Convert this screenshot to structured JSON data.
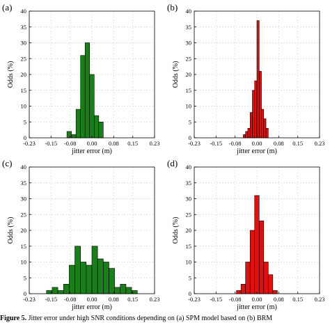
{
  "chart_data": [
    {
      "type": "bar",
      "panel_label": "(a)",
      "ylabel": "Odds (%)",
      "xlabel": "jitter error (m)",
      "xlim": [
        -0.23,
        0.23
      ],
      "ylim": [
        0,
        40
      ],
      "xticks": [
        "-0.23",
        "-0.15",
        "-0.08",
        "0.00",
        "0.08",
        "0.15",
        "0.23"
      ],
      "yticks": [
        "0",
        "5",
        "10",
        "15",
        "20",
        "25",
        "30",
        "35",
        "40"
      ],
      "bin_width": 0.0167,
      "bin_centers": [
        -0.0833,
        -0.0667,
        -0.05,
        -0.0333,
        -0.0167,
        0.0,
        0.0167,
        0.0333,
        0.05
      ],
      "values": [
        2,
        1,
        9,
        26,
        30,
        20,
        7,
        5,
        0
      ],
      "color": "#1a7f1a"
    },
    {
      "type": "bar",
      "panel_label": "(b)",
      "ylabel": "Odds (%)",
      "xlabel": "jitter error (m)",
      "xlim": [
        -0.23,
        0.23
      ],
      "ylim": [
        0,
        40
      ],
      "xticks": [
        "-0.23",
        "-0.15",
        "-0.08",
        "0.00",
        "0.08",
        "0.15",
        "0.23"
      ],
      "yticks": [
        "0",
        "5",
        "10",
        "15",
        "20",
        "25",
        "30",
        "35",
        "40"
      ],
      "bin_width": 0.0083,
      "bin_centers": [
        -0.0458,
        -0.0375,
        -0.0292,
        -0.0208,
        -0.0125,
        -0.0042,
        0.0042,
        0.0125,
        0.0208,
        0.0292,
        0.0375,
        0.0458
      ],
      "values": [
        1,
        2,
        3,
        8,
        15,
        18,
        37,
        21,
        9,
        6,
        3,
        0
      ],
      "color": "#e01010"
    },
    {
      "type": "bar",
      "panel_label": "(c)",
      "ylabel": "Odds (%)",
      "xlabel": "jitter error (m)",
      "xlim": [
        -0.23,
        0.23
      ],
      "ylim": [
        0,
        40
      ],
      "xticks": [
        "-0.23",
        "-0.15",
        "-0.08",
        "0.00",
        "0.08",
        "0.15",
        "0.23"
      ],
      "yticks": [
        "0",
        "5",
        "10",
        "15",
        "20",
        "25",
        "30",
        "35",
        "40"
      ],
      "bin_width": 0.0208,
      "bin_centers": [
        -0.1563,
        -0.1354,
        -0.1146,
        -0.0938,
        -0.0729,
        -0.0521,
        -0.0313,
        -0.0104,
        0.0104,
        0.0313,
        0.0521,
        0.0729,
        0.0938,
        0.1146,
        0.1354,
        0.1563
      ],
      "values": [
        1,
        2,
        1,
        3,
        9,
        15,
        10,
        9,
        15,
        11,
        10,
        8,
        2,
        3,
        2,
        1
      ],
      "color": "#1a7f1a"
    },
    {
      "type": "bar",
      "panel_label": "(d)",
      "ylabel": "Odds (%)",
      "xlabel": "jitter error (m)",
      "xlim": [
        -0.23,
        0.23
      ],
      "ylim": [
        0,
        40
      ],
      "xticks": [
        "-0.23",
        "-0.15",
        "-0.08",
        "0.00",
        "0.08",
        "0.15",
        "0.23"
      ],
      "yticks": [
        "0",
        "5",
        "10",
        "15",
        "20",
        "25",
        "30",
        "35",
        "40"
      ],
      "bin_width": 0.0167,
      "bin_centers": [
        -0.0833,
        -0.0667,
        -0.05,
        -0.0333,
        -0.0167,
        0.0,
        0.0167,
        0.0333,
        0.05,
        0.0667
      ],
      "values": [
        0,
        1,
        3,
        10,
        20,
        31,
        23,
        10,
        6,
        1
      ],
      "color": "#e01010"
    }
  ],
  "caption": {
    "label": "Figure 5.",
    "text": " Jitter error under high SNR conditions depending on (a) SPM model based on (b) BRM"
  }
}
